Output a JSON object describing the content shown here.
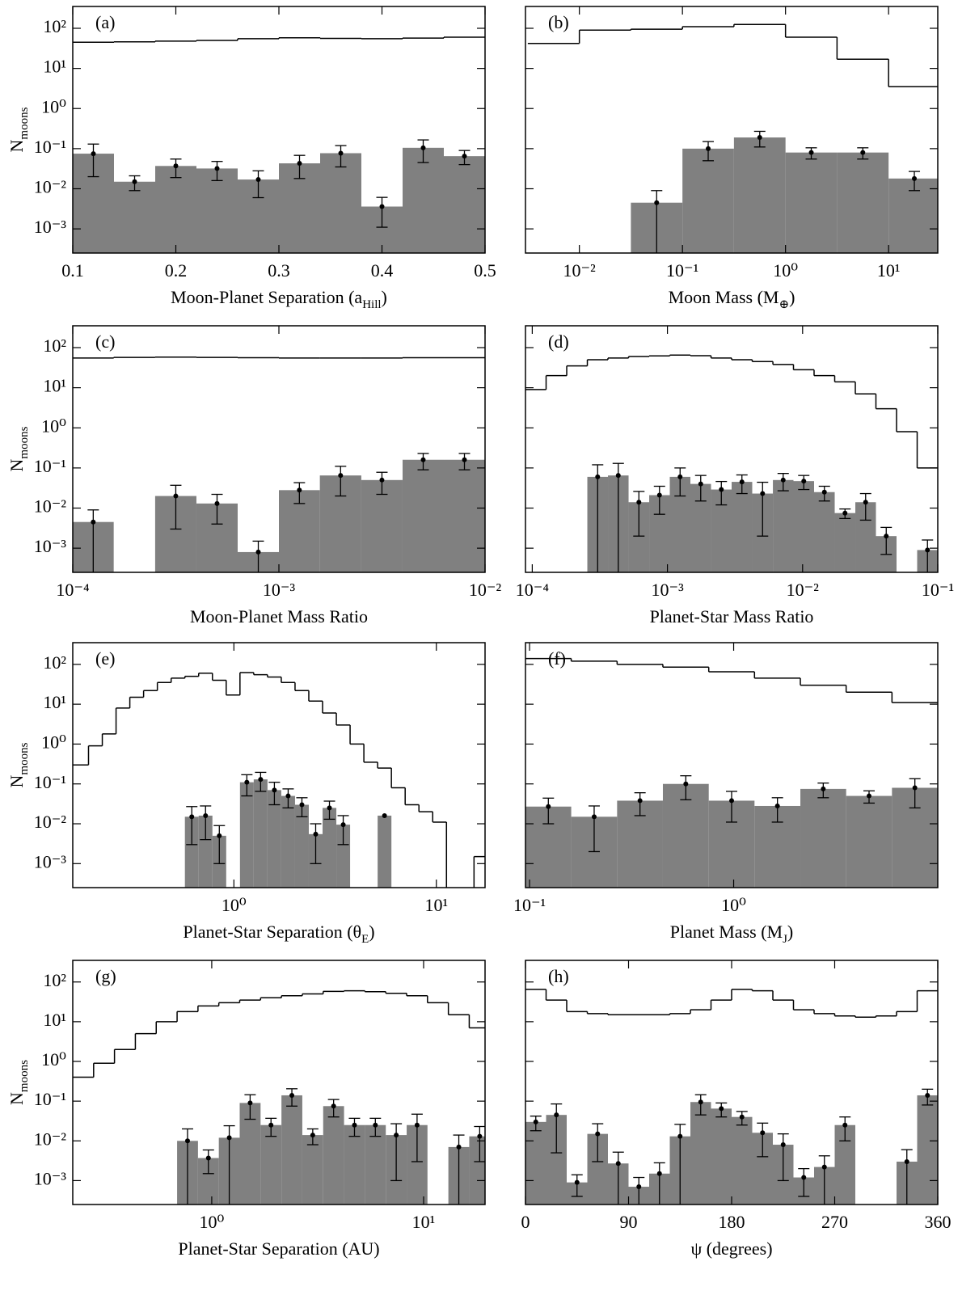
{
  "chart_data": [
    {
      "type": "histogram",
      "label": "(a)",
      "xlabel": [
        "Moon-Planet Separation (a",
        "Hill",
        ")"
      ],
      "ylabel": [
        "N",
        "moons"
      ],
      "xlog": false,
      "ylog": true,
      "xlim": [
        0.1,
        0.5
      ],
      "xticks": [
        0.1,
        0.2,
        0.3,
        0.4,
        0.5
      ],
      "ylim": [
        0.00025,
        350
      ],
      "ytick_labels": true,
      "yticks": [
        {
          "value": 0.001,
          "label": "10⁻³"
        },
        {
          "value": 0.01,
          "label": "10⁻²"
        },
        {
          "value": 0.1,
          "label": "10⁻¹"
        },
        {
          "value": 1,
          "label": "10⁰"
        },
        {
          "value": 10,
          "label": "10¹"
        },
        {
          "value": 100,
          "label": "10²"
        }
      ],
      "bins": [
        0.1,
        0.14,
        0.18,
        0.22,
        0.26,
        0.3,
        0.34,
        0.38,
        0.42,
        0.46,
        0.5
      ],
      "counts": [
        0.075,
        0.015,
        0.037,
        0.032,
        0.017,
        0.043,
        0.077,
        0.0036,
        0.105,
        0.065
      ],
      "yerr": [
        0.055,
        0.006,
        0.018,
        0.016,
        0.011,
        0.025,
        0.042,
        0.0025,
        0.06,
        0.025
      ],
      "total": [
        45,
        46,
        48,
        50,
        55,
        58,
        56,
        55,
        57,
        60
      ],
      "color": "#808080",
      "line_color": "#000000"
    },
    {
      "type": "histogram",
      "label": "(b)",
      "xlabel": [
        "Moon Mass (M",
        "⊕",
        ")"
      ],
      "xlog": true,
      "ylog": true,
      "xlim": [
        0.003,
        30
      ],
      "xticks": [
        {
          "value": 0.01,
          "label": "10⁻²"
        },
        {
          "value": 0.1,
          "label": "10⁻¹"
        },
        {
          "value": 1,
          "label": "10⁰"
        },
        {
          "value": 10,
          "label": "10¹"
        }
      ],
      "ylim": [
        0.00025,
        350
      ],
      "ytick_labels": false,
      "yticks": [
        0.001,
        0.01,
        0.1,
        1,
        10,
        100
      ],
      "bins": [
        0.00316,
        0.01,
        0.0316,
        0.1,
        0.316,
        1,
        3.16,
        10,
        31.6
      ],
      "counts": [
        null,
        null,
        0.0045,
        0.1,
        0.19,
        0.08,
        0.08,
        0.018
      ],
      "yerr": [
        null,
        null,
        0.0045,
        0.05,
        0.08,
        0.025,
        0.025,
        0.009
      ],
      "total": [
        42,
        90,
        95,
        110,
        125,
        60,
        17,
        3.5
      ],
      "color": "#808080",
      "line_color": "#000000"
    },
    {
      "type": "histogram",
      "label": "(c)",
      "xlabel": [
        "Moon-Planet Mass Ratio"
      ],
      "ylabel": [
        "N",
        "moons"
      ],
      "xlog": true,
      "ylog": true,
      "xlim": [
        0.0001,
        0.01
      ],
      "xticks": [
        {
          "value": 0.0001,
          "label": "10⁻⁴"
        },
        {
          "value": 0.001,
          "label": "10⁻³"
        },
        {
          "value": 0.01,
          "label": "10⁻²"
        }
      ],
      "ylim": [
        0.00025,
        350
      ],
      "ytick_labels": true,
      "yticks": [
        {
          "value": 0.001,
          "label": "10⁻³"
        },
        {
          "value": 0.01,
          "label": "10⁻²"
        },
        {
          "value": 0.1,
          "label": "10⁻¹"
        },
        {
          "value": 1,
          "label": "10⁰"
        },
        {
          "value": 10,
          "label": "10¹"
        },
        {
          "value": 100,
          "label": "10²"
        }
      ],
      "bins": [
        0.0001,
        0.000158,
        0.000251,
        0.000398,
        0.000631,
        0.001,
        0.00158,
        0.00251,
        0.00398,
        0.00631,
        0.01
      ],
      "counts": [
        0.0045,
        null,
        0.02,
        0.013,
        0.0008,
        0.028,
        0.065,
        0.05,
        0.16,
        0.16
      ],
      "yerr": [
        0.0045,
        null,
        0.017,
        0.009,
        0.0007,
        0.015,
        0.045,
        0.028,
        0.07,
        0.07
      ],
      "total": [
        55,
        57,
        58,
        57,
        56,
        55,
        55,
        55,
        56,
        56
      ],
      "color": "#808080",
      "line_color": "#000000"
    },
    {
      "type": "histogram",
      "label": "(d)",
      "xlabel": [
        "Planet-Star Mass Ratio"
      ],
      "xlog": true,
      "ylog": true,
      "xlim": [
        8.91e-05,
        0.1
      ],
      "xticks": [
        {
          "value": 0.0001,
          "label": "10⁻⁴"
        },
        {
          "value": 0.001,
          "label": "10⁻³"
        },
        {
          "value": 0.01,
          "label": "10⁻²"
        },
        {
          "value": 0.1,
          "label": "10⁻¹"
        }
      ],
      "ylim": [
        0.00025,
        350
      ],
      "ytick_labels": false,
      "yticks": [
        0.001,
        0.01,
        0.1,
        1,
        10,
        100
      ],
      "bins": [
        8.91e-05,
        0.0001266,
        0.0001799,
        0.0002556,
        0.0003631,
        0.000516,
        0.000733,
        0.001041,
        0.001479,
        0.002102,
        0.002985,
        0.00424,
        0.00603,
        0.00856,
        0.01216,
        0.01728,
        0.02455,
        0.03487,
        0.04955,
        0.0704,
        0.1
      ],
      "counts": [
        null,
        null,
        null,
        0.06,
        0.065,
        0.014,
        0.021,
        0.06,
        0.04,
        0.029,
        0.045,
        0.023,
        0.05,
        0.047,
        0.025,
        0.0075,
        0.014,
        0.002,
        null,
        0.0009
      ],
      "yerr": [
        null,
        null,
        null,
        0.06,
        0.065,
        0.012,
        0.014,
        0.04,
        0.025,
        0.017,
        0.022,
        0.021,
        0.023,
        0.018,
        0.01,
        0.002,
        0.009,
        0.0013,
        null,
        0.0007
      ],
      "total": [
        9,
        20,
        35,
        50,
        55,
        60,
        62,
        65,
        63,
        55,
        50,
        45,
        38,
        28,
        20,
        14,
        7,
        3,
        0.8,
        0.1
      ],
      "color": "#808080",
      "line_color": "#000000"
    },
    {
      "type": "histogram",
      "label": "(e)",
      "xlabel": [
        "Planet-Star Separation (θ",
        "E",
        ")"
      ],
      "ylabel": [
        "N",
        "moons"
      ],
      "xlog": true,
      "ylog": true,
      "xlim": [
        0.16,
        17.4
      ],
      "xticks": [
        {
          "value": 1,
          "label": "10⁰"
        },
        {
          "value": 10,
          "label": "10¹"
        }
      ],
      "ylim": [
        0.00025,
        350
      ],
      "ytick_labels": true,
      "yticks": [
        {
          "value": 0.001,
          "label": "10⁻³"
        },
        {
          "value": 0.01,
          "label": "10⁻²"
        },
        {
          "value": 0.1,
          "label": "10⁻¹"
        },
        {
          "value": 1,
          "label": "10⁰"
        },
        {
          "value": 10,
          "label": "10¹"
        },
        {
          "value": 100,
          "label": "10²"
        }
      ],
      "bins": [
        0.14,
        0.1637,
        0.1914,
        0.2239,
        0.2618,
        0.3062,
        0.3581,
        0.4188,
        0.4898,
        0.5728,
        0.6699,
        0.7834,
        0.9162,
        1.0715,
        1.2531,
        1.4655,
        1.714,
        2.0045,
        2.3442,
        2.7416,
        3.2063,
        3.7497,
        4.3853,
        5.1286,
        5.9979,
        7.0146,
        8.2035,
        9.594,
        11.22,
        13.122,
        15.346,
        17.947
      ],
      "counts": [
        null,
        null,
        null,
        null,
        null,
        null,
        null,
        null,
        null,
        0.015,
        0.016,
        0.005,
        null,
        0.11,
        0.13,
        0.07,
        0.05,
        0.03,
        0.0055,
        0.025,
        0.0095,
        null,
        null,
        0.016,
        null,
        null,
        null,
        null,
        null,
        null,
        null
      ],
      "yerr": [
        null,
        null,
        null,
        null,
        null,
        null,
        null,
        null,
        null,
        0.012,
        0.012,
        0.004,
        null,
        0.06,
        0.065,
        0.04,
        0.025,
        0.015,
        0.0045,
        0.012,
        0.0065,
        null,
        null,
        null,
        null,
        null,
        null,
        null,
        null,
        null,
        null
      ],
      "total": [
        0.3,
        0.3,
        0.9,
        1.8,
        8,
        15,
        22,
        35,
        45,
        50,
        60,
        40,
        17,
        62,
        55,
        48,
        35,
        22,
        12,
        6,
        3,
        1,
        0.35,
        0.25,
        0.08,
        0.03,
        0.02,
        0.011,
        null,
        null,
        0.0015
      ],
      "color": "#808080",
      "line_color": "#000000"
    },
    {
      "type": "histogram",
      "label": "(f)",
      "xlabel": [
        "Planet Mass (M",
        "J",
        ")"
      ],
      "xlog": true,
      "ylog": true,
      "xlim": [
        0.0955,
        10
      ],
      "xticks": [
        {
          "value": 0.1,
          "label": "10⁻¹"
        },
        {
          "value": 1,
          "label": "10⁰"
        }
      ],
      "ylim": [
        0.00025,
        350
      ],
      "ytick_labels": false,
      "yticks": [
        0.001,
        0.01,
        0.1,
        1,
        10,
        100
      ],
      "bins": [
        0.0955,
        0.16,
        0.2685,
        0.45,
        0.755,
        1.265,
        2.122,
        3.557,
        5.965,
        10
      ],
      "counts": [
        0.027,
        0.015,
        0.038,
        0.1,
        0.038,
        0.028,
        0.075,
        0.05,
        0.08
      ],
      "yerr": [
        0.017,
        0.013,
        0.022,
        0.06,
        0.027,
        0.017,
        0.03,
        0.017,
        0.055
      ],
      "total": [
        140,
        120,
        100,
        85,
        65,
        45,
        30,
        20,
        11
      ],
      "color": "#808080",
      "line_color": "#000000"
    },
    {
      "type": "histogram",
      "label": "(g)",
      "xlabel": [
        "Planet-Star Separation (AU)"
      ],
      "ylabel": [
        "N",
        "moons"
      ],
      "xlog": true,
      "ylog": true,
      "xlim": [
        0.2208,
        19.5
      ],
      "xticks": [
        {
          "value": 1,
          "label": "10⁰"
        },
        {
          "value": 10,
          "label": "10¹"
        }
      ],
      "ylim": [
        0.00025,
        350
      ],
      "ytick_labels": true,
      "yticks": [
        {
          "value": 0.001,
          "label": "10⁻³"
        },
        {
          "value": 0.01,
          "label": "10⁻²"
        },
        {
          "value": 0.1,
          "label": "10⁻¹"
        },
        {
          "value": 1,
          "label": "10⁰"
        },
        {
          "value": 10,
          "label": "10¹"
        },
        {
          "value": 100,
          "label": "10²"
        }
      ],
      "bins": [
        0.2208,
        0.277,
        0.3475,
        0.436,
        0.547,
        0.6863,
        0.861,
        1.08,
        1.355,
        1.7,
        2.133,
        2.676,
        3.357,
        4.212,
        5.284,
        6.63,
        8.318,
        10.43,
        13.09,
        16.42,
        20.61
      ],
      "counts": [
        null,
        null,
        null,
        null,
        null,
        0.01,
        0.0037,
        0.012,
        0.09,
        0.025,
        0.14,
        0.014,
        0.075,
        0.025,
        0.025,
        0.014,
        0.025,
        null,
        0.007,
        0.013
      ],
      "yerr": [
        null,
        null,
        null,
        null,
        null,
        0.01,
        0.0022,
        0.012,
        0.055,
        0.012,
        0.065,
        0.006,
        0.035,
        0.012,
        0.012,
        0.013,
        0.022,
        null,
        0.007,
        0.01
      ],
      "total": [
        0.4,
        0.9,
        2,
        5,
        10,
        18,
        25,
        30,
        35,
        40,
        45,
        50,
        58,
        60,
        57,
        52,
        45,
        30,
        15,
        7
      ],
      "color": "#808080",
      "line_color": "#000000"
    },
    {
      "type": "histogram",
      "label": "(h)",
      "xlabel": [
        "ψ (degrees)"
      ],
      "xlog": false,
      "ylog": true,
      "xlim": [
        0,
        360
      ],
      "xticks": [
        0,
        90,
        180,
        270,
        360
      ],
      "ylim": [
        0.00025,
        350
      ],
      "ytick_labels": false,
      "yticks": [
        0.001,
        0.01,
        0.1,
        1,
        10,
        100
      ],
      "bins": [
        0,
        18,
        36,
        54,
        72,
        90,
        108,
        126,
        144,
        162,
        180,
        198,
        216,
        234,
        252,
        270,
        288,
        306,
        324,
        342,
        360
      ],
      "counts": [
        0.03,
        0.045,
        0.0009,
        0.015,
        0.0027,
        0.0007,
        0.0015,
        0.013,
        0.095,
        0.065,
        0.04,
        0.016,
        0.008,
        0.0012,
        0.0022,
        0.025,
        null,
        null,
        0.003,
        0.14
      ],
      "yerr": [
        0.012,
        0.04,
        0.0005,
        0.012,
        0.0025,
        0.0005,
        0.0013,
        0.013,
        0.05,
        0.025,
        0.015,
        0.012,
        0.007,
        0.0008,
        0.002,
        0.015,
        null,
        null,
        0.003,
        0.06
      ],
      "total": [
        65,
        35,
        18,
        16,
        15,
        15,
        15,
        16,
        20,
        35,
        65,
        60,
        35,
        20,
        16,
        14,
        13,
        14,
        18,
        60
      ],
      "color": "#808080",
      "line_color": "#000000"
    }
  ]
}
